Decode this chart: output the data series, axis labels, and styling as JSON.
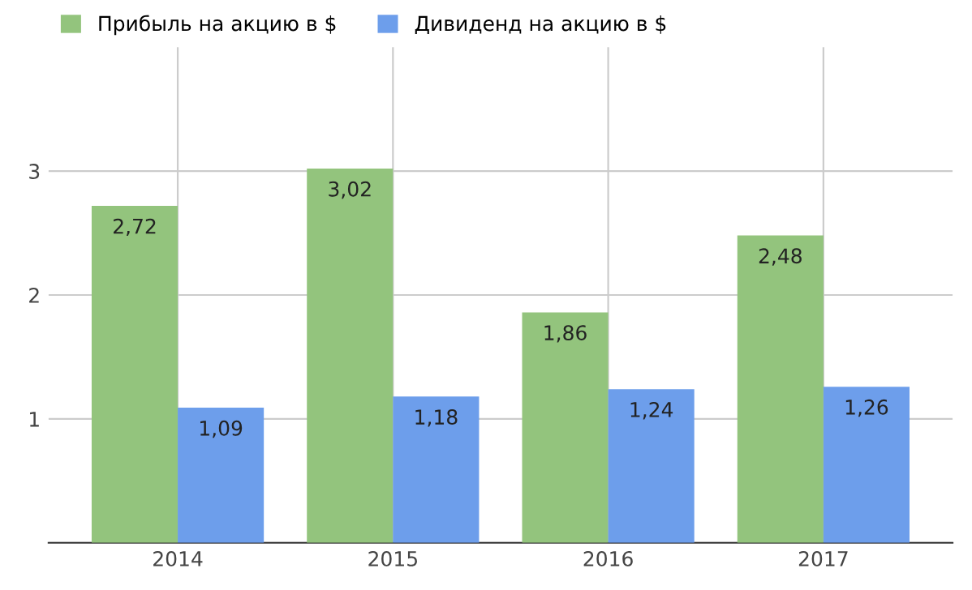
{
  "chart_data": {
    "type": "bar",
    "categories": [
      "2014",
      "2015",
      "2016",
      "2017"
    ],
    "series": [
      {
        "name": "Прибыль на акцию в $",
        "color": "#93c47d",
        "values": [
          2.72,
          3.02,
          1.86,
          2.48
        ],
        "value_labels": [
          "2,72",
          "3,02",
          "1,86",
          "2,48"
        ]
      },
      {
        "name": "Дивиденд на акцию в $",
        "color": "#6d9eeb",
        "values": [
          1.09,
          1.18,
          1.24,
          1.26
        ],
        "value_labels": [
          "1,09",
          "1,18",
          "1,24",
          "1,26"
        ]
      }
    ],
    "ylim": [
      0,
      4
    ],
    "yticks": [
      {
        "value": 0,
        "label": null
      },
      1,
      2,
      3
    ],
    "grid": true,
    "legend": "top left"
  }
}
